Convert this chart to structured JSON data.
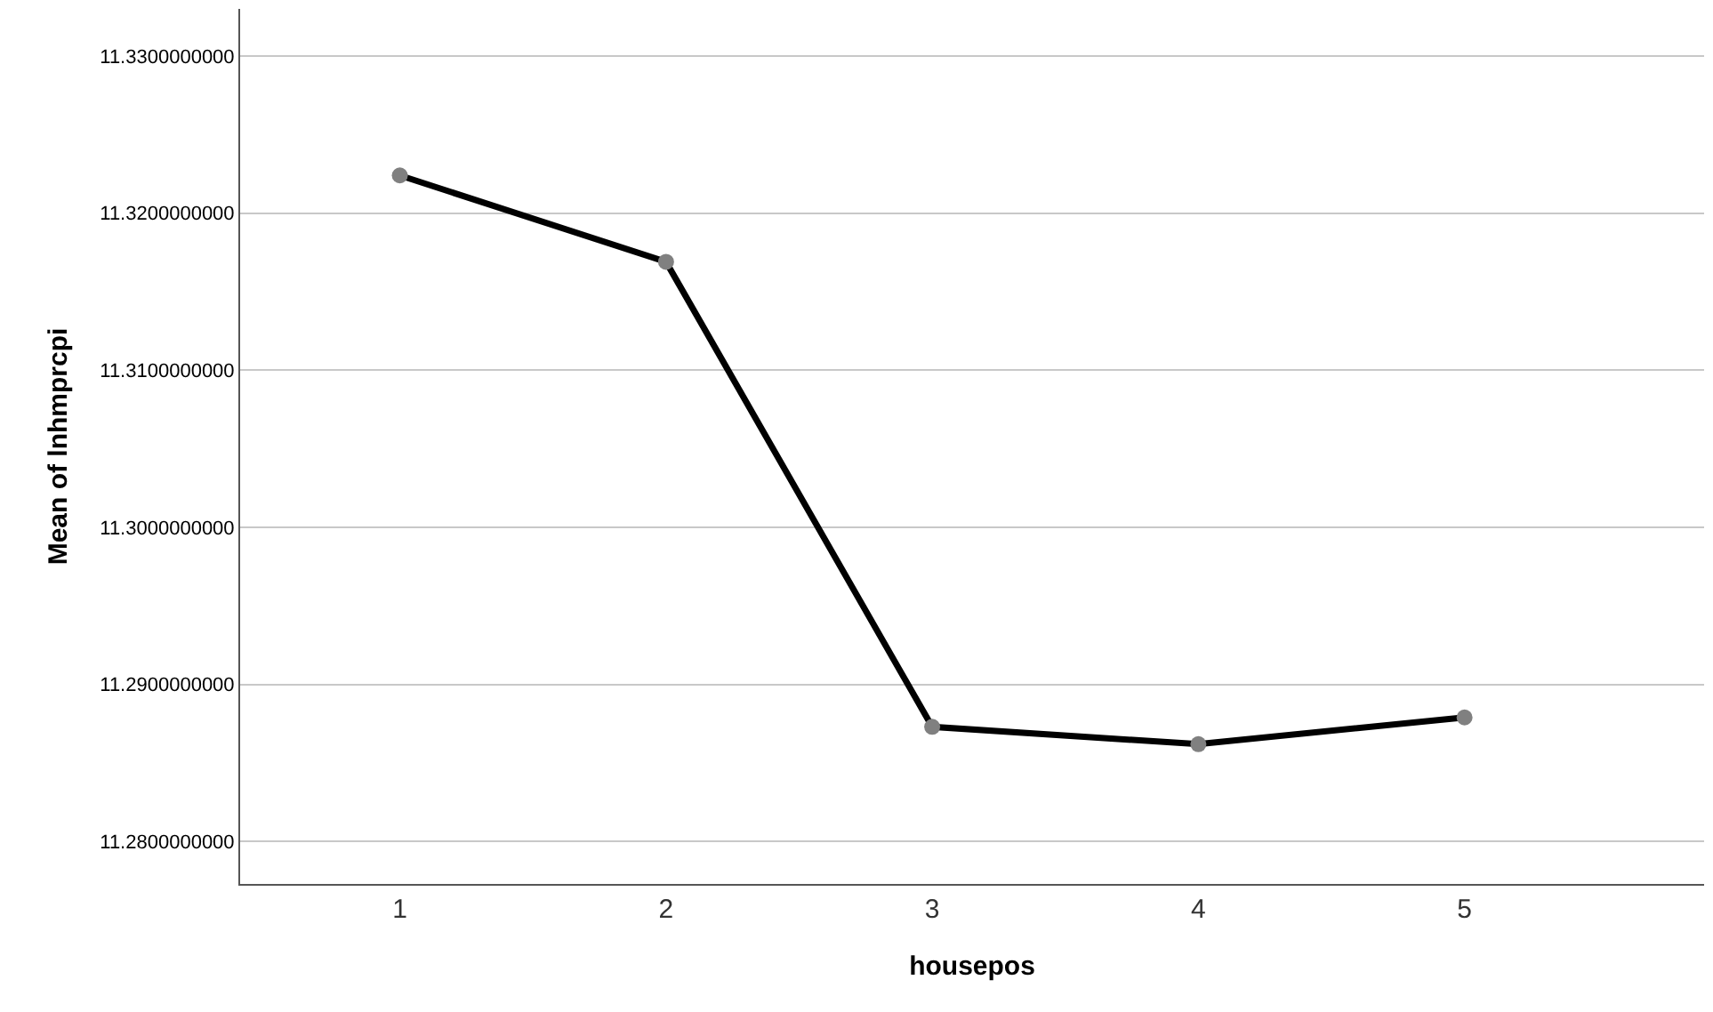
{
  "chart_data": {
    "type": "line",
    "xlabel": "housepos",
    "ylabel": "Mean of lnhmprcpi",
    "categories": [
      "1",
      "2",
      "3",
      "4",
      "5"
    ],
    "series": [
      {
        "color": "#000000",
        "values": [
          11.3224,
          11.3169,
          11.2873,
          11.2862,
          11.2879
        ]
      }
    ],
    "ylim": [
      11.2773,
      11.333
    ],
    "yticks": [
      {
        "value": 11.28,
        "label": "11.2800000000"
      },
      {
        "value": 11.29,
        "label": "11.2900000000"
      },
      {
        "value": 11.3,
        "label": "11.3000000000"
      },
      {
        "value": 11.31,
        "label": "11.3100000000"
      },
      {
        "value": 11.32,
        "label": "11.3200000000"
      },
      {
        "value": 11.33,
        "label": "11.3300000000"
      }
    ],
    "grid": "y",
    "marker": "circle",
    "line_style": "solid"
  }
}
